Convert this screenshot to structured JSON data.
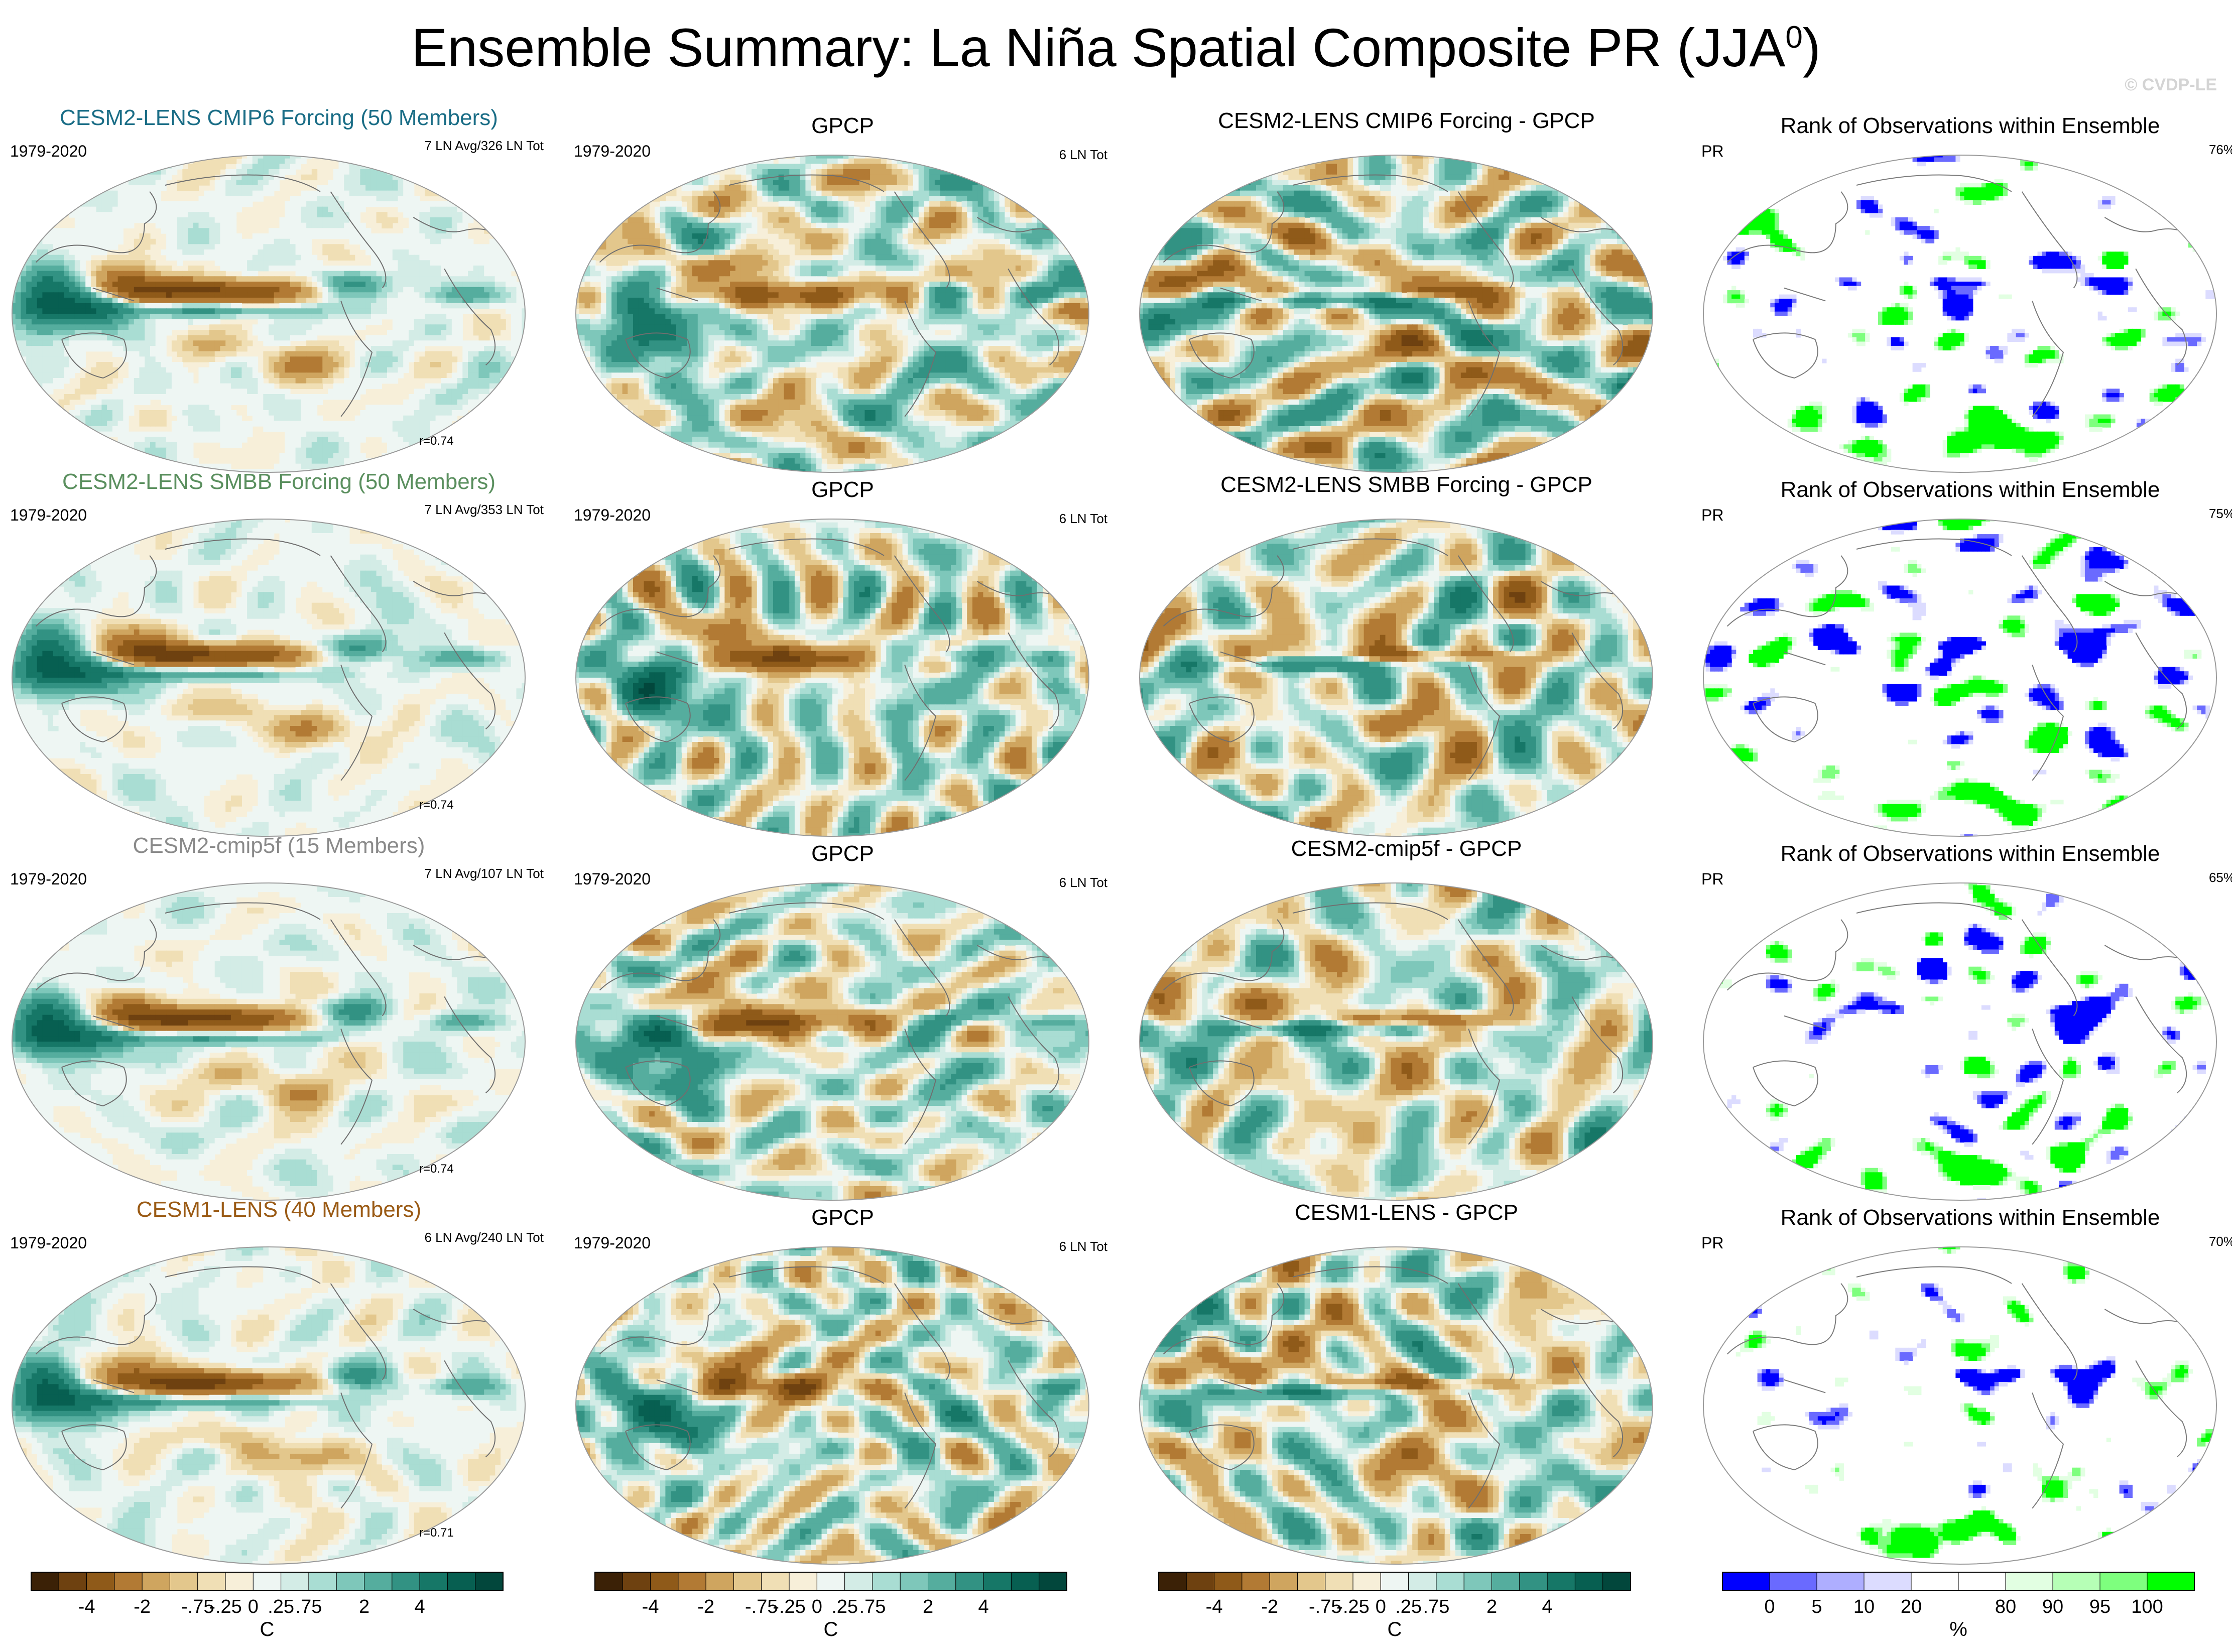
{
  "title_main": "Ensemble Summary: La Niña Spatial Composite PR (JJA",
  "title_sup": "0",
  "title_end": ")",
  "watermark": "© CVDP-LE",
  "colors": {
    "cesm2_cmip6": "#1a6d86",
    "cesm2_smbb": "#5a8f5e",
    "cesm2_cmip5f": "#8a8a8a",
    "cesm1": "#9a5a14",
    "rank_low": "#0000ee",
    "rank_high": "#00ee00"
  },
  "rows": [
    {
      "ens": {
        "title": "CESM2-LENS CMIP6 Forcing (50 Members)",
        "period": "1979-2020",
        "events": "7 LN Avg/326 LN Tot",
        "corr": "r=0.74"
      },
      "obs": {
        "title": "GPCP",
        "period": "1979-2020",
        "events": "6 LN Tot"
      },
      "diff": {
        "title": "CESM2-LENS CMIP6 Forcing - GPCP"
      },
      "rank": {
        "title": "Rank of Observations within Ensemble",
        "var": "PR",
        "pct": "76%"
      }
    },
    {
      "ens": {
        "title": "CESM2-LENS SMBB Forcing (50 Members)",
        "period": "1979-2020",
        "events": "7 LN Avg/353 LN Tot",
        "corr": "r=0.74"
      },
      "obs": {
        "title": "GPCP",
        "period": "1979-2020",
        "events": "6 LN Tot"
      },
      "diff": {
        "title": "CESM2-LENS SMBB Forcing - GPCP"
      },
      "rank": {
        "title": "Rank of Observations within Ensemble",
        "var": "PR",
        "pct": "75%"
      }
    },
    {
      "ens": {
        "title": "CESM2-cmip5f (15 Members)",
        "period": "1979-2020",
        "events": "7 LN Avg/107 LN Tot",
        "corr": "r=0.74"
      },
      "obs": {
        "title": "GPCP",
        "period": "1979-2020",
        "events": "6 LN Tot"
      },
      "diff": {
        "title": "CESM2-cmip5f - GPCP"
      },
      "rank": {
        "title": "Rank of Observations within Ensemble",
        "var": "PR",
        "pct": "65%"
      }
    },
    {
      "ens": {
        "title": "CESM1-LENS (40 Members)",
        "period": "1979-2020",
        "events": "6 LN Avg/240 LN Tot",
        "corr": "r=0.71"
      },
      "obs": {
        "title": "GPCP",
        "period": "1979-2020",
        "events": "6 LN Tot"
      },
      "diff": {
        "title": "CESM1-LENS - GPCP"
      },
      "rank": {
        "title": "Rank of Observations within Ensemble",
        "var": "PR",
        "pct": "70%"
      }
    }
  ],
  "chart_data": {
    "type": "heatmap",
    "title": "Ensemble Summary: La Niña Spatial Composite PR (JJA0)",
    "projection": "global robinson-style map",
    "colorbars": [
      {
        "unit": "C",
        "labels": [
          "-4",
          "-2",
          "-.75",
          "-.25",
          "0",
          ".25",
          ".75",
          "2",
          "4"
        ],
        "colors": [
          "#3b2106",
          "#6e4110",
          "#8f5a19",
          "#b27a34",
          "#cfa55f",
          "#e3c78c",
          "#f0dfb5",
          "#f7efd9",
          "#eef6f3",
          "#d3ece6",
          "#a9ddd3",
          "#7ec7ba",
          "#55ad9e",
          "#329283",
          "#167767",
          "#075f51",
          "#02473c"
        ]
      },
      {
        "unit": "%",
        "labels": [
          "0",
          "5",
          "10",
          "20",
          "80",
          "90",
          "95",
          "100"
        ],
        "colors": [
          "#0000ff",
          "#6a6aff",
          "#aeaeff",
          "#dcdcff",
          "#ffffff",
          "#ffffff",
          "#e2ffe2",
          "#b6ffb6",
          "#7eff7e",
          "#00ff00"
        ]
      }
    ]
  }
}
